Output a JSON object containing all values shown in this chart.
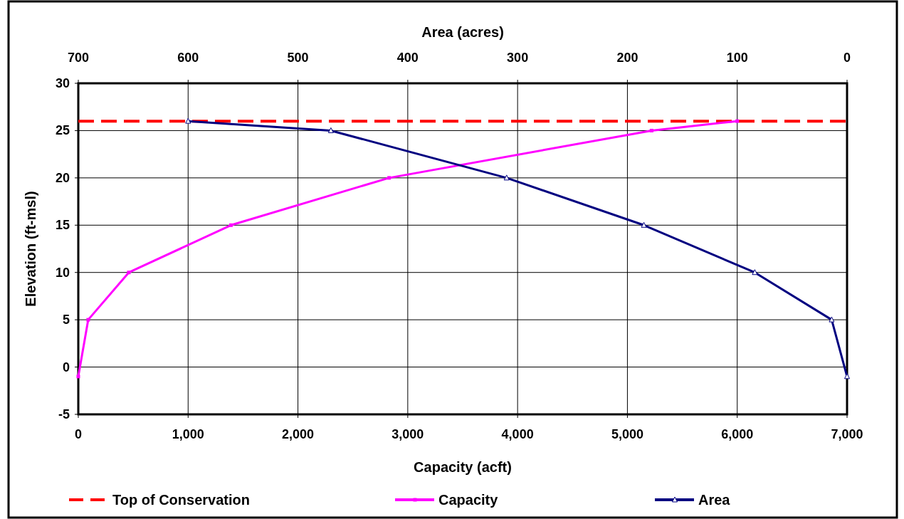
{
  "chart_data": {
    "type": "line",
    "xlabel": "Capacity (acft)",
    "x2label": "Area (acres)",
    "ylabel": "Elevation (ft-msl)",
    "xlim": [
      0,
      7000
    ],
    "xticks": [
      0,
      {
        "value": 1000,
        "label": "1,000"
      },
      {
        "value": 2000,
        "label": "2,000"
      },
      {
        "value": 3000,
        "label": "3,000"
      },
      {
        "value": 4000,
        "label": "4,000"
      },
      {
        "value": 5000,
        "label": "5,000"
      },
      {
        "value": 6000,
        "label": "6,000"
      },
      {
        "value": 7000,
        "label": "7,000"
      }
    ],
    "x2lim": [
      700,
      0
    ],
    "x2ticks": [
      700,
      600,
      500,
      400,
      300,
      200,
      100,
      0
    ],
    "ylim": [
      -5,
      30
    ],
    "yticks": [
      -5,
      0,
      5,
      10,
      15,
      20,
      25,
      30
    ],
    "grid": true,
    "legend": "bottom",
    "ref_lines": [
      {
        "axis": "y",
        "value": 26,
        "label": "Top of Conservation",
        "color": "#ff0000",
        "line_style": "dashed"
      }
    ],
    "series": [
      {
        "name": "Capacity",
        "color": "#ff00ff",
        "marker": "square",
        "x": [
          0,
          90,
          460,
          1390,
          2830,
          5220,
          6000
        ],
        "values": [
          -1,
          5,
          10,
          15,
          20,
          25,
          26
        ]
      },
      {
        "name": "Area",
        "color": "#000080",
        "marker": "triangle",
        "axis": "x2",
        "x": [
          0,
          14,
          84,
          185,
          310,
          470,
          600
        ],
        "values": [
          -1,
          5,
          10,
          15,
          20,
          25,
          26
        ]
      }
    ]
  }
}
